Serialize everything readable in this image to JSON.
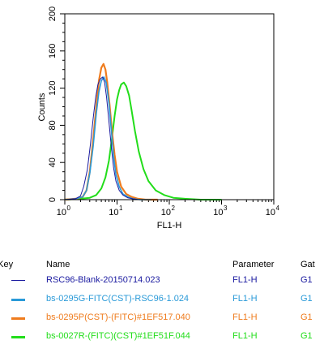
{
  "chart_data": {
    "type": "line",
    "xlabel": "FL1-H",
    "ylabel": "Counts",
    "xscale": "log",
    "xlim": [
      1,
      10000
    ],
    "ylim": [
      0,
      200
    ],
    "x_ticks": [
      {
        "value": 1,
        "base": "10",
        "exp": "0"
      },
      {
        "value": 10,
        "base": "10",
        "exp": "1"
      },
      {
        "value": 100,
        "base": "10",
        "exp": "2"
      },
      {
        "value": 1000,
        "base": "10",
        "exp": "3"
      },
      {
        "value": 10000,
        "base": "10",
        "exp": "4"
      }
    ],
    "y_ticks": [
      "0",
      "40",
      "80",
      "120",
      "160",
      "200"
    ],
    "series": [
      {
        "name": "RSC96-Blank-20150714.023",
        "color": "#1a1aa0",
        "x": [
          1.0,
          1.6,
          2.0,
          2.3,
          2.7,
          3.1,
          3.5,
          3.9,
          4.3,
          4.8,
          5.3,
          5.8,
          6.3,
          7.0,
          7.8,
          8.6,
          9.5,
          11,
          13,
          16,
          20,
          26,
          40
        ],
        "y": [
          0,
          1,
          4,
          14,
          32,
          60,
          88,
          110,
          124,
          130,
          132,
          126,
          110,
          84,
          56,
          34,
          20,
          10,
          5,
          2,
          1,
          0,
          0
        ]
      },
      {
        "name": "bs-0295G-FITC(CST)-RSC96-1.024",
        "color": "#2a9ad8",
        "x": [
          1.0,
          1.6,
          2.2,
          2.6,
          3.0,
          3.5,
          4.0,
          4.5,
          5.0,
          5.6,
          6.2,
          7.0,
          7.8,
          8.6,
          9.5,
          11,
          13,
          16,
          20,
          28,
          45
        ],
        "y": [
          0,
          1,
          3,
          10,
          28,
          58,
          92,
          116,
          128,
          132,
          126,
          104,
          74,
          46,
          27,
          14,
          6,
          3,
          1,
          0,
          0
        ]
      },
      {
        "name": "bs-0295P(CST)-(FITC)#1EF517.040",
        "color": "#ef7c1e",
        "x": [
          1.0,
          1.6,
          2.2,
          2.6,
          3.0,
          3.5,
          4.0,
          4.5,
          5.0,
          5.5,
          6.0,
          6.5,
          7.2,
          8.0,
          9.0,
          10,
          12,
          15,
          19,
          25,
          35,
          60
        ],
        "y": [
          0,
          1,
          3,
          10,
          30,
          65,
          100,
          128,
          142,
          146,
          140,
          126,
          102,
          74,
          48,
          30,
          14,
          6,
          3,
          1,
          0,
          0
        ]
      },
      {
        "name": "bs-0027R-(FITC)(CST)#1EF51F.044",
        "color": "#22dd1a",
        "x": [
          1.0,
          2.0,
          3.0,
          4.0,
          5.0,
          6.0,
          7.0,
          8.0,
          9.0,
          10,
          11,
          12,
          13.5,
          15,
          17,
          19,
          22,
          26,
          32,
          40,
          55,
          80,
          120,
          200,
          400,
          1000
        ],
        "y": [
          0,
          1,
          2,
          5,
          12,
          24,
          42,
          66,
          90,
          108,
          118,
          124,
          126,
          122,
          112,
          96,
          74,
          52,
          33,
          20,
          10,
          5,
          2,
          1,
          0,
          0
        ]
      }
    ]
  },
  "legend": {
    "headers": {
      "key": "atKey",
      "name": "Name",
      "parameter": "Parameter",
      "gate": "Gat"
    },
    "rows": [
      {
        "key": "1",
        "name": "RSC96-Blank-20150714.023",
        "parameter": "FL1-H",
        "gate": "G1",
        "color": "#1a1aa0"
      },
      {
        "key": "1",
        "name": "bs-0295G-FITC(CST)-RSC96-1.024",
        "parameter": "FL1-H",
        "gate": "G1",
        "color": "#2a9ad8"
      },
      {
        "key": "1",
        "name": "bs-0295P(CST)-(FITC)#1EF517.040",
        "parameter": "FL1-H",
        "gate": "G1",
        "color": "#ef7c1e"
      },
      {
        "key": "1",
        "name": "bs-0027R-(FITC)(CST)#1EF51F.044",
        "parameter": "FL1-H",
        "gate": "G1",
        "color": "#22dd1a"
      }
    ]
  }
}
